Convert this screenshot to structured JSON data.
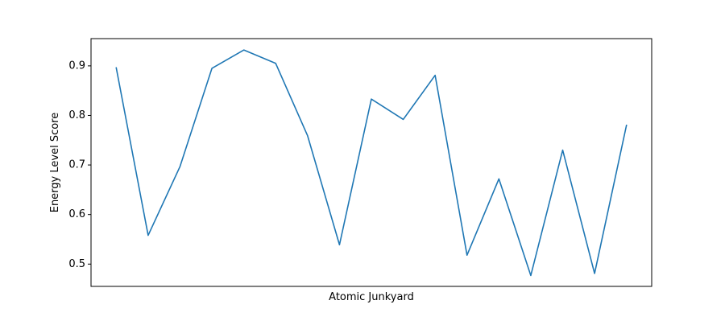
{
  "chart_data": {
    "type": "line",
    "title": "",
    "xlabel": "Atomic Junkyard",
    "ylabel": "Energy Level Score",
    "x_tick_labels_visible": false,
    "ylim": [
      0.455,
      0.955
    ],
    "yticks": [
      0.5,
      0.6,
      0.7,
      0.8,
      0.9
    ],
    "ytick_labels": [
      "0.5",
      "0.6",
      "0.7",
      "0.8",
      "0.9"
    ],
    "grid": false,
    "legend": "none",
    "series": [
      {
        "color": "#1f77b4",
        "values": [
          0.896,
          0.558,
          0.697,
          0.895,
          0.932,
          0.905,
          0.759,
          0.539,
          0.833,
          0.792,
          0.881,
          0.518,
          0.672,
          0.477,
          0.73,
          0.481,
          0.78
        ]
      }
    ]
  }
}
